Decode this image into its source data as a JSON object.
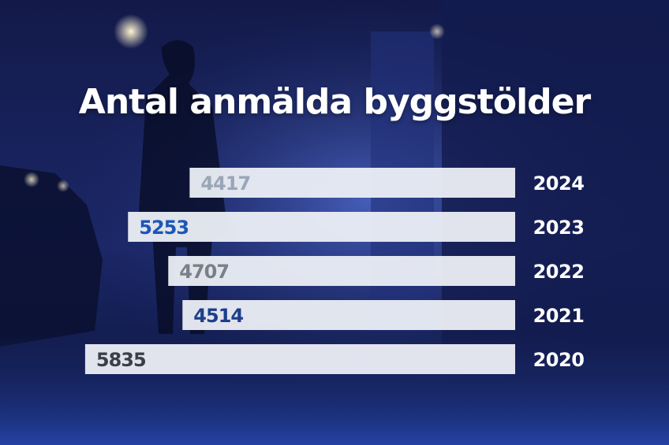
{
  "title": "Antal anmälda byggstölder",
  "colors": {
    "bar": "#eceff6",
    "year_text": "#ffffff",
    "value_colors": [
      "#9aa6b8",
      "#1d56b8",
      "#7a7f88",
      "#1d3f8a",
      "#3a3f4a"
    ]
  },
  "chart_data": {
    "type": "bar",
    "orientation": "horizontal",
    "title": "Antal anmälda byggstölder",
    "xlabel": "",
    "ylabel": "",
    "categories": [
      "2024",
      "2023",
      "2022",
      "2021",
      "2020"
    ],
    "values": [
      4417,
      5253,
      4707,
      4514,
      5835
    ],
    "value_labels": [
      "4417",
      "5253",
      "4707",
      "4514",
      "5835"
    ],
    "grid": false,
    "legend": "none"
  }
}
